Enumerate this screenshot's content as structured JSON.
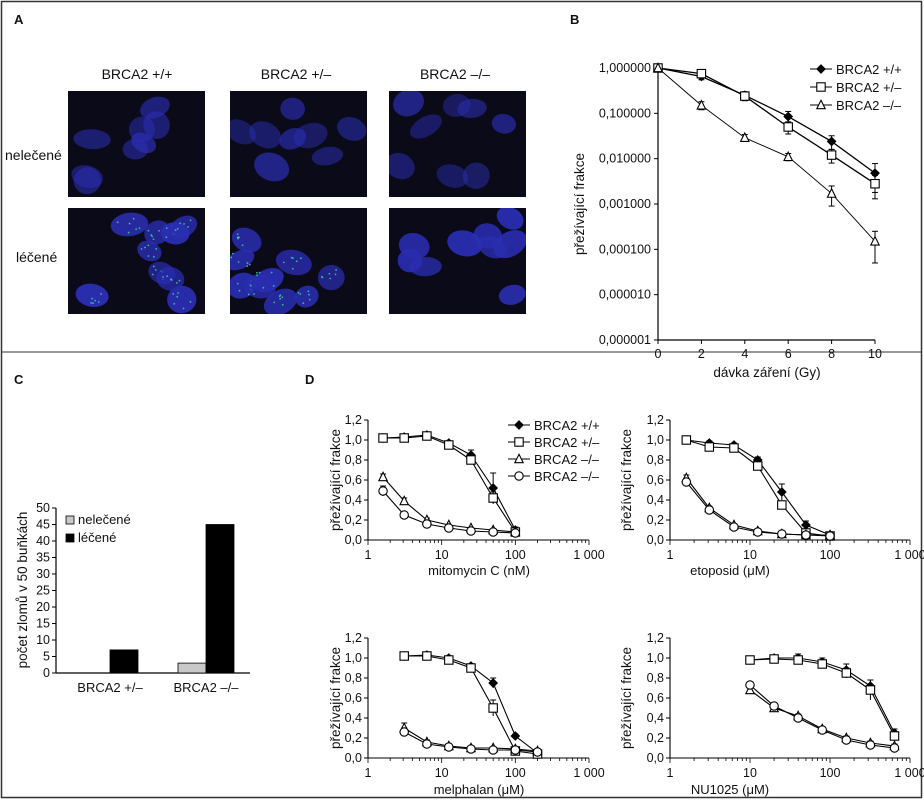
{
  "panels": {
    "A": {
      "label": "A",
      "col_labels": [
        "BRCA2 +/+",
        "BRCA2 +/–",
        "BRCA2 –/–"
      ],
      "row_labels": [
        "nelečené",
        "léčené"
      ]
    },
    "B": {
      "label": "B"
    },
    "C": {
      "label": "C"
    },
    "D": {
      "label": "D"
    }
  },
  "colors": {
    "micro_bg": "#0a0a18",
    "nucleus": "#2a2db0",
    "foci": "#3fd8a8",
    "bar_untreated": "#c8c8c8",
    "bar_treated": "#000000"
  },
  "chart_data": [
    {
      "id": "B",
      "type": "line",
      "ylabel": "přežívající frakce",
      "xlabel": "dávka záření (Gy)",
      "yscale": "log",
      "ylim": [
        1e-06,
        1
      ],
      "xlim": [
        0,
        10
      ],
      "xticks": [
        0,
        2,
        4,
        6,
        8,
        10
      ],
      "xtick_labels": [
        "0",
        "2",
        "4",
        "6",
        "8",
        "10"
      ],
      "yticks": [
        1,
        0.1,
        0.01,
        0.001,
        0.0001,
        1e-05,
        1e-06
      ],
      "ytick_labels": [
        "1,000000",
        "0,100000",
        "0,010000",
        "0,001000",
        "0,000100",
        "0,000010",
        "0,000001"
      ],
      "legend_position": "top-right",
      "x": [
        0,
        2,
        4,
        6,
        8,
        10
      ],
      "series": [
        {
          "name": "BRCA2 +/+",
          "marker": "diamond",
          "values": [
            1,
            0.65,
            0.25,
            0.085,
            0.024,
            0.0048
          ],
          "err": [
            0,
            0.1,
            0.05,
            0.025,
            0.008,
            0.003
          ]
        },
        {
          "name": "BRCA2 +/–",
          "marker": "square",
          "values": [
            1,
            0.75,
            0.24,
            0.05,
            0.012,
            0.0028
          ],
          "err": [
            0,
            0.1,
            0.05,
            0.015,
            0.004,
            0.0015
          ]
        },
        {
          "name": "BRCA2 –/–",
          "marker": "triangle",
          "values": [
            1,
            0.15,
            0.029,
            0.011,
            0.0017,
            0.00015
          ],
          "err": [
            0,
            0.03,
            0.005,
            0.002,
            0.0008,
            0.0001
          ]
        }
      ]
    },
    {
      "id": "C",
      "type": "bar",
      "ylabel": "počet zlomů v 50 buňkách",
      "categories": [
        "BRCA2 +/–",
        "BRCA2 –/–"
      ],
      "ylim": [
        0,
        50
      ],
      "yticks": [
        0,
        5,
        10,
        15,
        20,
        25,
        30,
        35,
        40,
        45,
        50
      ],
      "legend_position": "top-left",
      "series": [
        {
          "name": "nelečené",
          "values": [
            0,
            3
          ]
        },
        {
          "name": "léčené",
          "values": [
            7,
            45
          ]
        }
      ]
    },
    {
      "id": "D1",
      "type": "line",
      "ylabel": "přežívající frakce",
      "xlabel": "mitomycin C (nM)",
      "xscale": "log",
      "xlim": [
        1,
        1000
      ],
      "xtick_labels": [
        "1",
        "10",
        "100",
        "1 000"
      ],
      "ylim": [
        0,
        1.2
      ],
      "ytick_labels": [
        "0,0",
        "0,2",
        "0,4",
        "0,6",
        "0,8",
        "1,0",
        "1,2"
      ],
      "legend_position": "top-right",
      "series": [
        {
          "name": "BRCA2 +/+",
          "marker": "diamond",
          "x": [
            1.6,
            3.1,
            6.3,
            12.5,
            25,
            50,
            100
          ],
          "values": [
            1.02,
            1.03,
            1.05,
            0.97,
            0.85,
            0.52,
            0.1
          ],
          "err": [
            0.02,
            0.02,
            0.02,
            0.02,
            0.05,
            0.15,
            0.03
          ]
        },
        {
          "name": "BRCA2 +/–",
          "marker": "square",
          "x": [
            1.6,
            3.1,
            6.3,
            12.5,
            25,
            50,
            100
          ],
          "values": [
            1.02,
            1.02,
            1.04,
            0.95,
            0.8,
            0.42,
            0.08
          ],
          "err": [
            0.02,
            0.02,
            0.02,
            0.02,
            0.04,
            0.06,
            0.02
          ]
        },
        {
          "name": "BRCA2 –/–",
          "marker": "triangle",
          "x": [
            1.6,
            3.1,
            6.3,
            12.5,
            25,
            50,
            100
          ],
          "values": [
            0.63,
            0.39,
            0.2,
            0.15,
            0.12,
            0.1,
            0.08
          ],
          "err": [
            0.03,
            0.03,
            0.02,
            0.01,
            0.01,
            0.01,
            0.01
          ]
        },
        {
          "name": "BRCA2 –/–",
          "marker": "circle",
          "x": [
            1.6,
            3.1,
            6.3,
            12.5,
            25,
            50,
            100
          ],
          "values": [
            0.49,
            0.25,
            0.16,
            0.12,
            0.09,
            0.08,
            0.07
          ],
          "err": [
            0.05,
            0.03,
            0.02,
            0.01,
            0.01,
            0.01,
            0.01
          ]
        }
      ]
    },
    {
      "id": "D2",
      "type": "line",
      "ylabel": "přežívající frakce",
      "xlabel": "etoposid (μM)",
      "xscale": "log",
      "xlim": [
        1,
        1000
      ],
      "xtick_labels": [
        "1",
        "10",
        "100",
        "1 000"
      ],
      "ylim": [
        0,
        1.2
      ],
      "ytick_labels": [
        "0,0",
        "0,2",
        "0,4",
        "0,6",
        "0,8",
        "1,0",
        "1,2"
      ],
      "series": [
        {
          "name": "BRCA2 +/+",
          "marker": "diamond",
          "x": [
            1.6,
            3.1,
            6.3,
            12.5,
            25,
            50,
            100
          ],
          "values": [
            1.0,
            0.97,
            0.95,
            0.8,
            0.48,
            0.15,
            0.05
          ],
          "err": [
            0.02,
            0.02,
            0.02,
            0.03,
            0.08,
            0.04,
            0.02
          ]
        },
        {
          "name": "BRCA2 +/–",
          "marker": "square",
          "x": [
            1.6,
            3.1,
            6.3,
            12.5,
            25,
            50,
            100
          ],
          "values": [
            1.0,
            0.93,
            0.92,
            0.74,
            0.35,
            0.07,
            0.04
          ],
          "err": [
            0.02,
            0.02,
            0.02,
            0.03,
            0.04,
            0.02,
            0.01
          ]
        },
        {
          "name": "BRCA2 –/–",
          "marker": "triangle",
          "x": [
            1.6,
            3.1,
            6.3,
            12.5,
            25,
            50,
            100
          ],
          "values": [
            0.62,
            0.32,
            0.15,
            0.09,
            0.06,
            0.05,
            0.05
          ],
          "err": [
            0.03,
            0.02,
            0.01,
            0.01,
            0.01,
            0.01,
            0.01
          ]
        },
        {
          "name": "BRCA2 –/–",
          "marker": "circle",
          "x": [
            1.6,
            3.1,
            6.3,
            12.5,
            25,
            50,
            100
          ],
          "values": [
            0.58,
            0.3,
            0.13,
            0.08,
            0.06,
            0.05,
            0.04
          ],
          "err": [
            0.03,
            0.02,
            0.01,
            0.01,
            0.01,
            0.01,
            0.01
          ]
        }
      ]
    },
    {
      "id": "D3",
      "type": "line",
      "ylabel": "přežívající frakce",
      "xlabel": "melphalan (μM)",
      "xscale": "log",
      "xlim": [
        1,
        1000
      ],
      "xtick_labels": [
        "1",
        "10",
        "100",
        "1 000"
      ],
      "ylim": [
        0,
        1.2
      ],
      "ytick_labels": [
        "0,0",
        "0,2",
        "0,4",
        "0,6",
        "0,8",
        "1,0",
        "1,2"
      ],
      "series": [
        {
          "name": "BRCA2 +/+",
          "marker": "diamond",
          "x": [
            3.1,
            6.3,
            12.5,
            25,
            50,
            100,
            200
          ],
          "values": [
            1.02,
            1.03,
            1.0,
            0.92,
            0.75,
            0.22,
            0.05
          ],
          "err": [
            0.03,
            0.02,
            0.02,
            0.02,
            0.05,
            0.02,
            0.01
          ]
        },
        {
          "name": "BRCA2 +/–",
          "marker": "square",
          "x": [
            3.1,
            6.3,
            12.5,
            25,
            50,
            100,
            200
          ],
          "values": [
            1.02,
            1.02,
            0.98,
            0.9,
            0.5,
            0.07,
            0.04
          ],
          "err": [
            0.03,
            0.02,
            0.02,
            0.02,
            0.08,
            0.02,
            0.01
          ]
        },
        {
          "name": "BRCA2 –/–",
          "marker": "triangle",
          "x": [
            3.1,
            6.3,
            12.5,
            25,
            50,
            100,
            200
          ],
          "values": [
            0.3,
            0.16,
            0.12,
            0.1,
            0.1,
            0.09,
            0.07
          ],
          "err": [
            0.05,
            0.02,
            0.01,
            0.01,
            0.01,
            0.01,
            0.01
          ]
        },
        {
          "name": "BRCA2 –/–",
          "marker": "circle",
          "x": [
            3.1,
            6.3,
            12.5,
            25,
            50,
            100,
            200
          ],
          "values": [
            0.26,
            0.14,
            0.11,
            0.09,
            0.08,
            0.08,
            0.06
          ],
          "err": [
            0.04,
            0.02,
            0.01,
            0.01,
            0.01,
            0.01,
            0.01
          ]
        }
      ]
    },
    {
      "id": "D4",
      "type": "line",
      "ylabel": "přežívající frakce",
      "xlabel": "NU1025 (μM)",
      "xscale": "log",
      "xlim": [
        1,
        1000
      ],
      "xtick_labels": [
        "1",
        "10",
        "100",
        "1 000"
      ],
      "ylim": [
        0,
        1.2
      ],
      "ytick_labels": [
        "0,0",
        "0,2",
        "0,4",
        "0,6",
        "0,8",
        "1,0",
        "1,2"
      ],
      "series": [
        {
          "name": "BRCA2 +/+",
          "marker": "diamond",
          "x": [
            10,
            20,
            40,
            80,
            160,
            320,
            640
          ],
          "values": [
            0.98,
            1.0,
            1.0,
            0.96,
            0.88,
            0.72,
            0.25
          ],
          "err": [
            0.03,
            0.03,
            0.04,
            0.04,
            0.06,
            0.06,
            0.04
          ]
        },
        {
          "name": "BRCA2 +/–",
          "marker": "square",
          "x": [
            10,
            20,
            40,
            80,
            160,
            320,
            640
          ],
          "values": [
            0.98,
            0.99,
            0.98,
            0.94,
            0.85,
            0.68,
            0.22
          ],
          "err": [
            0.03,
            0.03,
            0.03,
            0.04,
            0.05,
            0.1,
            0.04
          ]
        },
        {
          "name": "BRCA2 –/–",
          "marker": "triangle",
          "x": [
            10,
            20,
            40,
            80,
            160,
            320,
            640
          ],
          "values": [
            0.68,
            0.5,
            0.42,
            0.29,
            0.2,
            0.15,
            0.12
          ],
          "err": [
            0.03,
            0.02,
            0.02,
            0.02,
            0.02,
            0.02,
            0.02
          ]
        },
        {
          "name": "BRCA2 –/–",
          "marker": "circle",
          "x": [
            10,
            20,
            40,
            80,
            160,
            320,
            640
          ],
          "values": [
            0.73,
            0.52,
            0.4,
            0.28,
            0.18,
            0.13,
            0.1
          ],
          "err": [
            0.03,
            0.02,
            0.02,
            0.02,
            0.02,
            0.02,
            0.02
          ]
        }
      ]
    }
  ]
}
